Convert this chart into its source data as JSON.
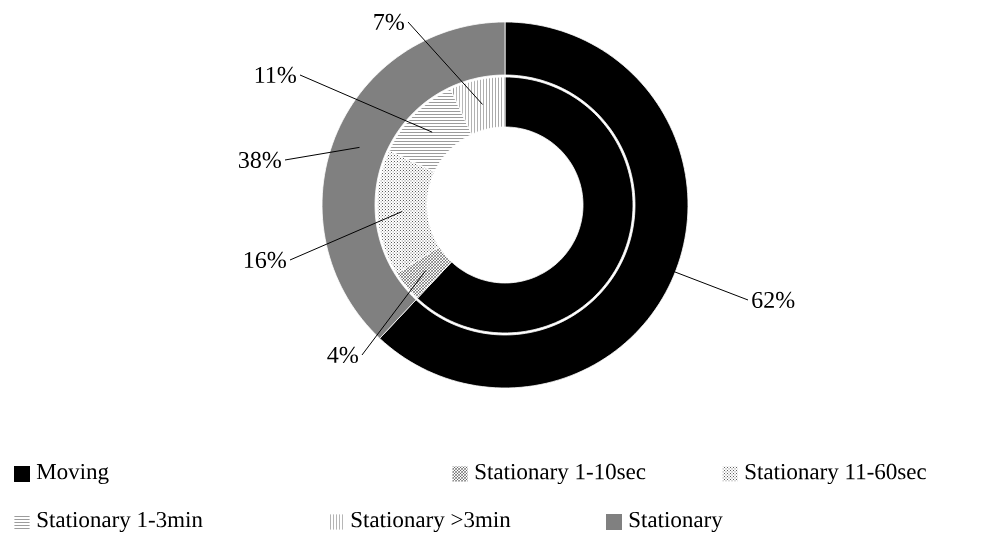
{
  "chart_data": {
    "type": "donut",
    "categories": [
      "Moving",
      "Stationary 1-10sec",
      "Stationary 11-60sec",
      "Stationary 1-3min",
      "Stationary >3min",
      "Stationary"
    ],
    "colors": [
      "#000000",
      "#ffffff",
      "#ffffff",
      "#ffffff",
      "#ffffff",
      "#808080"
    ],
    "series": [
      {
        "values": [
          62,
          null,
          null,
          null,
          null,
          38
        ],
        "value_labels": [
          "62%",
          null,
          null,
          null,
          null,
          "38%"
        ]
      },
      {
        "values": [
          62,
          4,
          16,
          11,
          7,
          null
        ],
        "value_labels": [
          null,
          "4%",
          "16%",
          "11%",
          "7%",
          null
        ]
      }
    ],
    "legend": "bottom"
  }
}
